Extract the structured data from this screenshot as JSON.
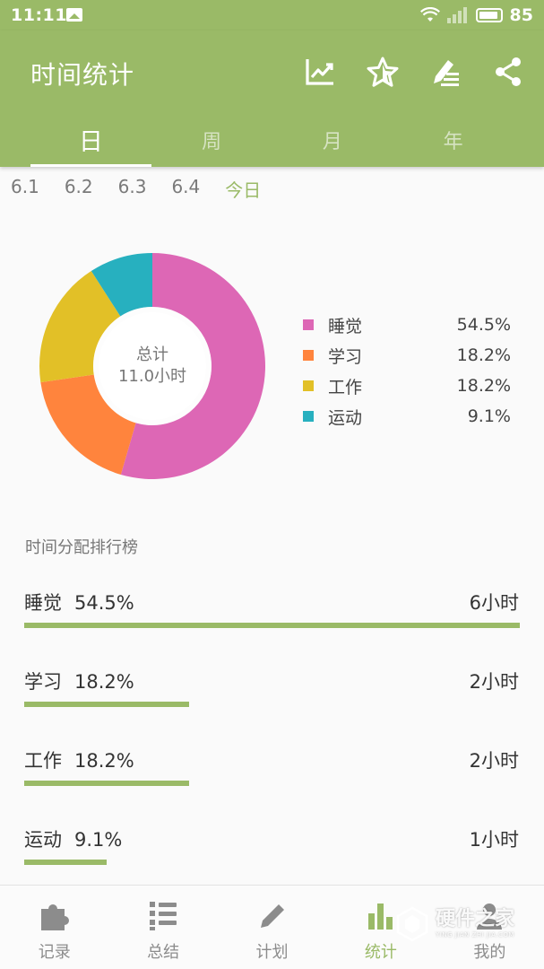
{
  "status_bar": {
    "time": "11:11",
    "battery": "85"
  },
  "app": {
    "title": "时间统计"
  },
  "toolbar_icons": [
    "trend-chart-icon",
    "star-icon",
    "edit-list-icon",
    "share-icon"
  ],
  "tabs": [
    {
      "label": "日",
      "active": true
    },
    {
      "label": "周",
      "active": false
    },
    {
      "label": "月",
      "active": false
    },
    {
      "label": "年",
      "active": false
    }
  ],
  "dates": [
    {
      "label": "6.1",
      "active": false
    },
    {
      "label": "6.2",
      "active": false
    },
    {
      "label": "6.3",
      "active": false
    },
    {
      "label": "6.4",
      "active": false
    },
    {
      "label": "今日",
      "active": true
    }
  ],
  "summary": {
    "line1": "总计",
    "line2": "11.0小时"
  },
  "chart_data": {
    "type": "pie",
    "donut": true,
    "categories": [
      "睡觉",
      "学习",
      "工作",
      "运动"
    ],
    "values": [
      54.5,
      18.2,
      18.2,
      9.1
    ],
    "value_labels": [
      "54.5%",
      "18.2%",
      "18.2%",
      "9.1%"
    ],
    "colors": [
      "#dd67b5",
      "#ff843d",
      "#e2c027",
      "#27b0bf"
    ],
    "center_text": [
      "总计",
      "11.0小时"
    ],
    "legend_position": "right"
  },
  "ranking": {
    "title": "时间分配排行榜",
    "items": [
      {
        "name": "睡觉",
        "percent": "54.5%",
        "hours": "6小时",
        "share": 1.0
      },
      {
        "name": "学习",
        "percent": "18.2%",
        "hours": "2小时",
        "share": 0.3333
      },
      {
        "name": "工作",
        "percent": "18.2%",
        "hours": "2小时",
        "share": 0.3333
      },
      {
        "name": "运动",
        "percent": "9.1%",
        "hours": "1小时",
        "share": 0.1667
      }
    ]
  },
  "bottom_nav": [
    {
      "label": "记录",
      "icon": "puzzle-icon",
      "active": false
    },
    {
      "label": "总结",
      "icon": "list-icon",
      "active": false
    },
    {
      "label": "计划",
      "icon": "pencil-icon",
      "active": false
    },
    {
      "label": "统计",
      "icon": "bar-chart-icon",
      "active": true
    },
    {
      "label": "我的",
      "icon": "person-icon",
      "active": false
    }
  ],
  "watermark": {
    "text": "硬件之家",
    "sub": "YING JIAN ZHI JIA.COM"
  },
  "colors": {
    "primary": "#9aba67",
    "accent_text": "#9aba67"
  }
}
